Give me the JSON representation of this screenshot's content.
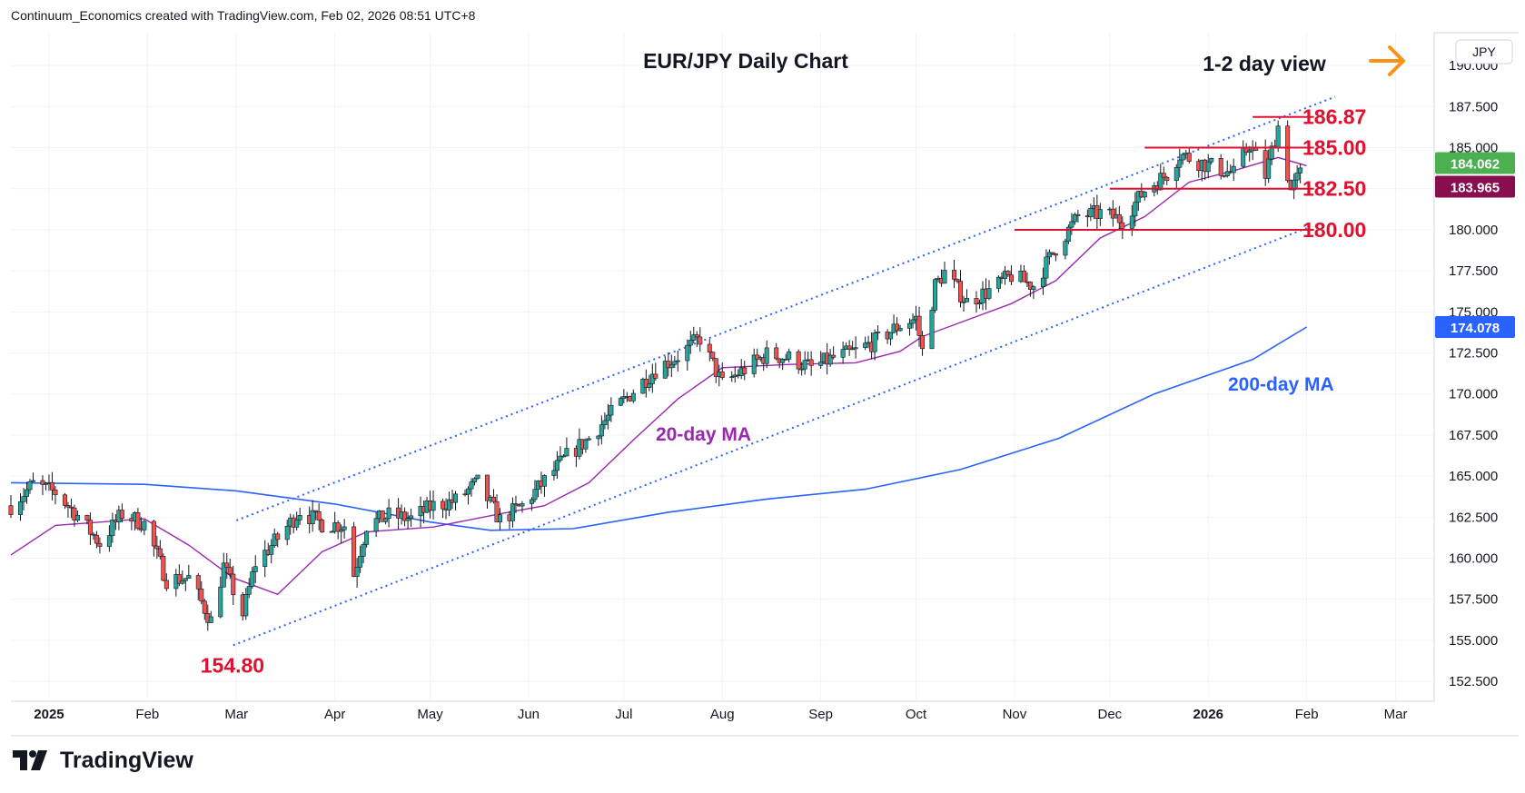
{
  "header": {
    "attribution": "Continuum_Economics created with TradingView.com, Feb 02, 2026 08:51 UTC+8"
  },
  "footer": {
    "brand": "TradingView"
  },
  "colors": {
    "up_candle": "#26a69a",
    "down_candle": "#ef5350",
    "wick": "#131722",
    "ma20": "#9c27b0",
    "ma200": "#2962ff",
    "channel": "#2962ff",
    "level": "#e0102e",
    "accent": "#f7931a",
    "last_price": "#4caf50",
    "prev_close": "#880e4f"
  },
  "chart_data": {
    "type": "candlestick",
    "title": "EUR/JPY Daily Chart",
    "view_label": "1-2 day view",
    "currency_label": "JPY",
    "y_ticks": [
      "152.500",
      "155.000",
      "157.500",
      "160.000",
      "162.500",
      "165.000",
      "167.500",
      "170.000",
      "172.500",
      "175.000",
      "177.500",
      "180.000",
      "182.500",
      "185.000",
      "187.500",
      "190.000"
    ],
    "x_ticks": [
      "2025",
      "Feb",
      "Mar",
      "Apr",
      "May",
      "Jun",
      "Jul",
      "Aug",
      "Sep",
      "Oct",
      "Nov",
      "Dec",
      "2026",
      "Feb",
      "Mar"
    ],
    "ylim": [
      151.4,
      192.0
    ],
    "grid": true,
    "price_badges": {
      "last_price": "184.062",
      "prev_close": "183.965",
      "ma200_value": "174.078"
    },
    "levels": [
      {
        "label": "186.87",
        "value": 186.87,
        "from": "2026-01-15",
        "to": "2026-02-01"
      },
      {
        "label": "185.00",
        "value": 185.0,
        "from": "2025-12-12",
        "to": "2026-02-01"
      },
      {
        "label": "182.50",
        "value": 182.5,
        "from": "2025-12-01",
        "to": "2026-02-01"
      },
      {
        "label": "180.00",
        "value": 180.0,
        "from": "2025-11-01",
        "to": "2026-02-01"
      }
    ],
    "low_label": {
      "text": "154.80",
      "value": 154.8,
      "date": "2025-02-28"
    },
    "annotations": {
      "ma20": "20-day MA",
      "ma200": "200-day MA"
    },
    "channel": {
      "upper": [
        {
          "date": "2025-03-01",
          "value": 162.3
        },
        {
          "date": "2026-02-10",
          "value": 188.1
        }
      ],
      "lower": [
        {
          "date": "2025-02-28",
          "value": 154.7
        },
        {
          "date": "2026-02-01",
          "value": 180.1
        }
      ]
    },
    "price_path": [
      [
        "2024-12-20",
        163.2
      ],
      [
        "2024-12-27",
        164.5
      ],
      [
        "2025-01-03",
        164.0
      ],
      [
        "2025-01-10",
        162.6
      ],
      [
        "2025-01-17",
        160.9
      ],
      [
        "2025-01-24",
        162.7
      ],
      [
        "2025-01-31",
        162.1
      ],
      [
        "2025-02-07",
        158.7
      ],
      [
        "2025-02-14",
        158.8
      ],
      [
        "2025-02-21",
        156.2
      ],
      [
        "2025-02-25",
        159.5
      ],
      [
        "2025-03-03",
        156.6
      ],
      [
        "2025-03-07",
        159.7
      ],
      [
        "2025-03-14",
        161.2
      ],
      [
        "2025-03-21",
        162.9
      ],
      [
        "2025-03-28",
        162.1
      ],
      [
        "2025-04-04",
        162.0
      ],
      [
        "2025-04-07",
        159.0
      ],
      [
        "2025-04-11",
        162.0
      ],
      [
        "2025-04-18",
        162.6
      ],
      [
        "2025-04-25",
        162.4
      ],
      [
        "2025-05-02",
        163.2
      ],
      [
        "2025-05-09",
        163.5
      ],
      [
        "2025-05-16",
        164.6
      ],
      [
        "2025-05-23",
        162.3
      ],
      [
        "2025-05-30",
        163.2
      ],
      [
        "2025-06-06",
        164.7
      ],
      [
        "2025-06-13",
        166.2
      ],
      [
        "2025-06-20",
        167.3
      ],
      [
        "2025-06-27",
        168.8
      ],
      [
        "2025-07-04",
        170.2
      ],
      [
        "2025-07-11",
        171.5
      ],
      [
        "2025-07-18",
        172.3
      ],
      [
        "2025-07-25",
        173.4
      ],
      [
        "2025-08-01",
        170.6
      ],
      [
        "2025-08-08",
        171.5
      ],
      [
        "2025-08-15",
        172.4
      ],
      [
        "2025-08-22",
        172.2
      ],
      [
        "2025-08-29",
        171.6
      ],
      [
        "2025-09-05",
        172.2
      ],
      [
        "2025-09-12",
        172.6
      ],
      [
        "2025-09-19",
        173.3
      ],
      [
        "2025-09-26",
        174.2
      ],
      [
        "2025-10-01",
        174.6
      ],
      [
        "2025-10-03",
        172.6
      ],
      [
        "2025-10-07",
        176.6
      ],
      [
        "2025-10-10",
        177.4
      ],
      [
        "2025-10-17",
        175.6
      ],
      [
        "2025-10-24",
        176.3
      ],
      [
        "2025-10-31",
        177.2
      ],
      [
        "2025-11-07",
        176.6
      ],
      [
        "2025-11-14",
        178.9
      ],
      [
        "2025-11-21",
        180.8
      ],
      [
        "2025-11-28",
        181.0
      ],
      [
        "2025-12-05",
        180.6
      ],
      [
        "2025-12-12",
        182.4
      ],
      [
        "2025-12-19",
        183.4
      ],
      [
        "2025-12-23",
        184.6
      ],
      [
        "2025-12-31",
        184.0
      ],
      [
        "2026-01-09",
        183.4
      ],
      [
        "2026-01-14",
        185.2
      ],
      [
        "2026-01-19",
        183.3
      ],
      [
        "2026-01-23",
        186.3
      ],
      [
        "2026-01-27",
        182.4
      ],
      [
        "2026-02-01",
        184.06
      ]
    ],
    "ma20_path": [
      [
        "2024-12-20",
        160.2
      ],
      [
        "2025-01-03",
        162.0
      ],
      [
        "2025-01-31",
        162.4
      ],
      [
        "2025-02-14",
        160.8
      ],
      [
        "2025-02-28",
        158.8
      ],
      [
        "2025-03-14",
        157.8
      ],
      [
        "2025-03-28",
        160.4
      ],
      [
        "2025-04-11",
        161.6
      ],
      [
        "2025-05-02",
        161.9
      ],
      [
        "2025-05-23",
        162.7
      ],
      [
        "2025-06-06",
        163.2
      ],
      [
        "2025-06-20",
        164.6
      ],
      [
        "2025-07-04",
        167.2
      ],
      [
        "2025-07-18",
        169.7
      ],
      [
        "2025-08-01",
        171.6
      ],
      [
        "2025-08-22",
        171.8
      ],
      [
        "2025-09-12",
        171.9
      ],
      [
        "2025-09-26",
        172.6
      ],
      [
        "2025-10-03",
        173.5
      ],
      [
        "2025-10-17",
        174.5
      ],
      [
        "2025-10-31",
        175.5
      ],
      [
        "2025-11-14",
        176.9
      ],
      [
        "2025-11-28",
        179.5
      ],
      [
        "2025-12-12",
        180.8
      ],
      [
        "2025-12-26",
        182.9
      ],
      [
        "2026-01-09",
        183.6
      ],
      [
        "2026-01-23",
        184.4
      ],
      [
        "2026-02-01",
        183.9
      ]
    ],
    "ma200_path": [
      [
        "2024-12-20",
        164.6
      ],
      [
        "2025-01-31",
        164.5
      ],
      [
        "2025-03-01",
        164.1
      ],
      [
        "2025-04-01",
        163.3
      ],
      [
        "2025-05-01",
        162.2
      ],
      [
        "2025-05-20",
        161.7
      ],
      [
        "2025-06-15",
        161.8
      ],
      [
        "2025-07-15",
        162.8
      ],
      [
        "2025-08-15",
        163.6
      ],
      [
        "2025-09-15",
        164.2
      ],
      [
        "2025-10-15",
        165.4
      ],
      [
        "2025-11-15",
        167.3
      ],
      [
        "2025-12-15",
        170.0
      ],
      [
        "2026-01-15",
        172.1
      ],
      [
        "2026-02-01",
        174.08
      ]
    ]
  }
}
